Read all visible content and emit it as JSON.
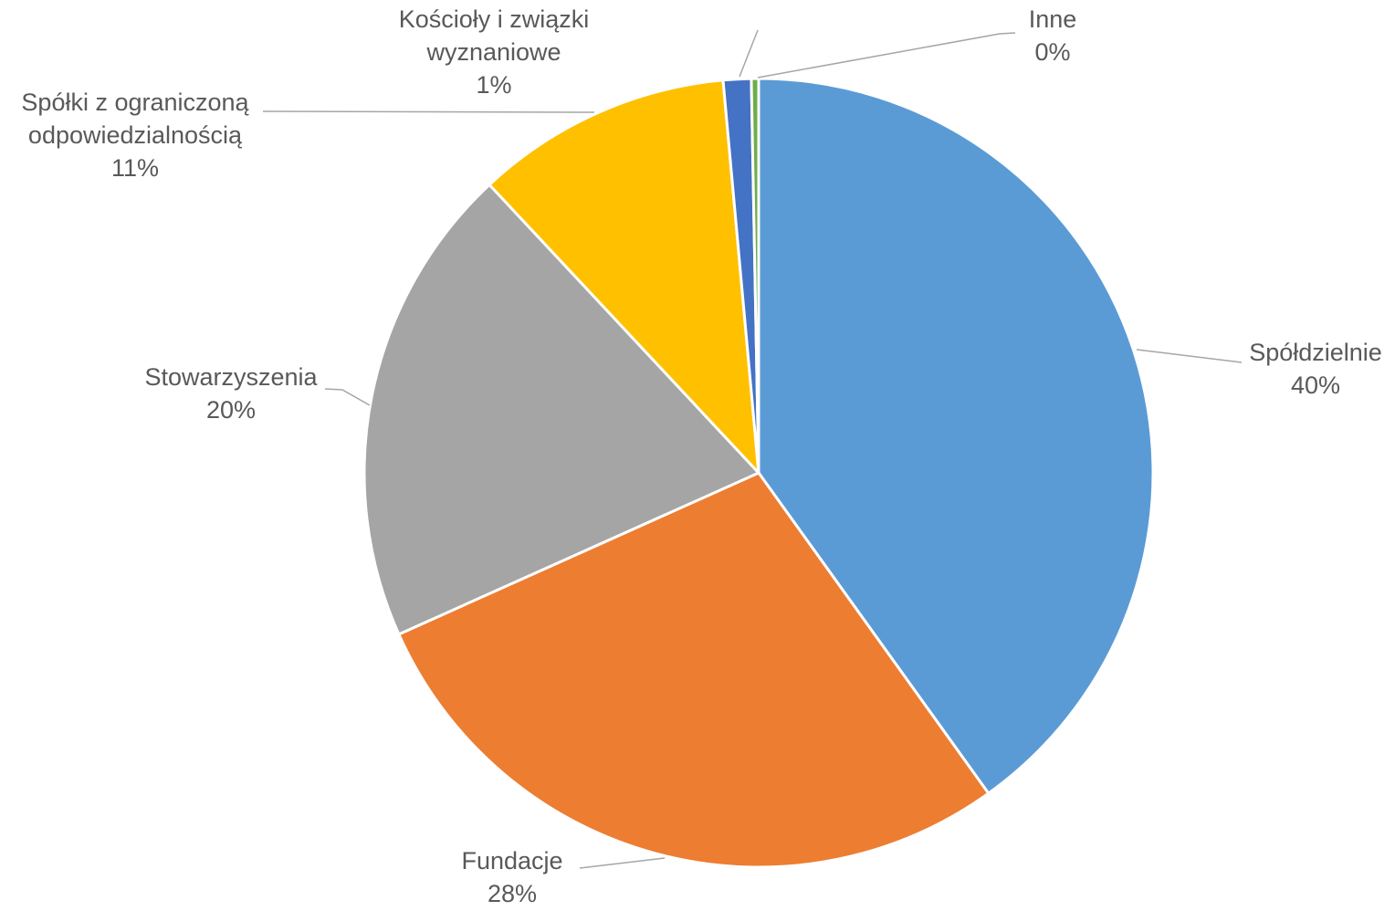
{
  "chart_data": {
    "type": "pie",
    "title": "",
    "legend": "none",
    "percent_format": "{p}%",
    "slices": [
      {
        "name": "Spółdzielnie",
        "value": 40,
        "color": "#5b9bd5"
      },
      {
        "name": "Fundacje",
        "value": 28,
        "color": "#ed7d31"
      },
      {
        "name": "Stowarzyszenia",
        "value": 20,
        "color": "#a5a5a5"
      },
      {
        "name": "Spółki z ograniczoną odpowiedzialnością",
        "value": 11,
        "color": "#ffc000"
      },
      {
        "name": "Kościoły i związki wyznaniowe",
        "value": 1,
        "color": "#4472c4"
      },
      {
        "name": "Inne",
        "value": 0,
        "color": "#70ad47"
      }
    ],
    "labels": [
      {
        "lines": [
          "Spółdzielnie"
        ],
        "percent": "40%"
      },
      {
        "lines": [
          "Fundacje"
        ],
        "percent": "28%"
      },
      {
        "lines": [
          "Stowarzyszenia"
        ],
        "percent": "20%"
      },
      {
        "lines": [
          "Spółki z ograniczoną",
          "odpowiedzialnością"
        ],
        "percent": "11%"
      },
      {
        "lines": [
          "Kościoły i związki",
          "wyznaniowe"
        ],
        "percent": "1%"
      },
      {
        "lines": [
          "Inne"
        ],
        "percent": "0%"
      }
    ]
  }
}
